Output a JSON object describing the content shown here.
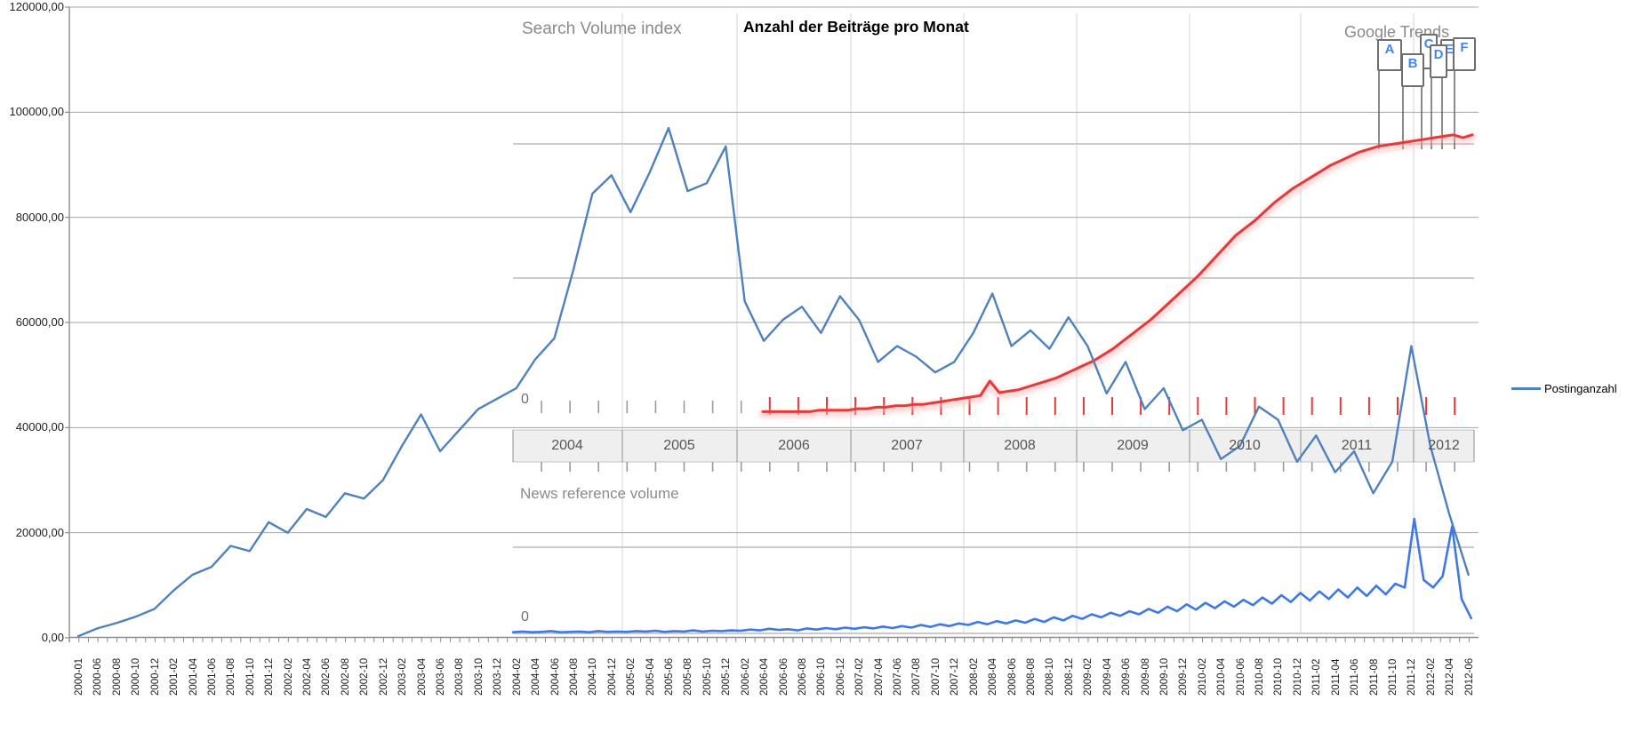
{
  "excel_chart": {
    "title": "Anzahl der Beiträge pro Monat",
    "legend_label": "Postinganzahl",
    "y_axis_labels": [
      "120000,00",
      "100000,00",
      "80000,00",
      "60000,00",
      "40000,00",
      "20000,00",
      "0,00"
    ]
  },
  "google_trends": {
    "search_section_title": "Search Volume index",
    "brand_label": "Google Trends",
    "news_section_title": "News reference volume",
    "search_axis_zero_label": "0",
    "news_axis_zero_label": "0",
    "year_labels": [
      "2004",
      "2005",
      "2006",
      "2007",
      "2008",
      "2009",
      "2010",
      "2011",
      "2012"
    ],
    "flag_labels": [
      "A",
      "B",
      "C",
      "D",
      "E",
      "F"
    ]
  },
  "chart_data": [
    {
      "type": "line",
      "name": "Postinganzahl",
      "title": "Anzahl der Beiträge pro Monat",
      "line_color": "#4F81BD",
      "ylim": [
        0,
        120000
      ],
      "ytick_step": 20000,
      "legend_position": "right",
      "grid": "horizontal",
      "x": [
        "2000-01",
        "2000-06",
        "2000-08",
        "2000-10",
        "2000-12",
        "2001-02",
        "2001-04",
        "2001-06",
        "2001-08",
        "2001-10",
        "2001-12",
        "2002-02",
        "2002-04",
        "2002-06",
        "2002-08",
        "2002-10",
        "2002-12",
        "2003-02",
        "2003-04",
        "2003-06",
        "2003-08",
        "2003-10",
        "2003-12",
        "2004-02",
        "2004-04",
        "2004-06",
        "2004-08",
        "2004-10",
        "2004-12",
        "2005-02",
        "2005-04",
        "2005-06",
        "2005-08",
        "2005-10",
        "2005-12",
        "2006-02",
        "2006-04",
        "2006-06",
        "2006-08",
        "2006-10",
        "2006-12",
        "2007-02",
        "2007-04",
        "2007-06",
        "2007-08",
        "2007-10",
        "2007-12",
        "2008-02",
        "2008-04",
        "2008-06",
        "2008-08",
        "2008-10",
        "2008-12",
        "2009-02",
        "2009-04",
        "2009-06",
        "2009-08",
        "2009-10",
        "2009-12",
        "2010-02",
        "2010-04",
        "2010-06",
        "2010-08",
        "2010-10",
        "2010-12",
        "2011-02",
        "2011-04",
        "2011-06",
        "2011-08",
        "2011-10",
        "2011-12",
        "2012-02",
        "2012-04",
        "2012-06"
      ],
      "values": [
        300,
        1800,
        2800,
        4000,
        5500,
        9000,
        12000,
        13500,
        17500,
        16500,
        22000,
        20000,
        24500,
        23000,
        27500,
        26500,
        30000,
        36500,
        42500,
        35500,
        39500,
        43500,
        45500,
        47500,
        53000,
        57000,
        70000,
        84500,
        88000,
        81000,
        88500,
        97000,
        85000,
        86500,
        93500,
        64000,
        56500,
        60500,
        63000,
        58000,
        65000,
        60500,
        52500,
        55500,
        53500,
        50500,
        52500,
        58000,
        65500,
        55500,
        58500,
        55000,
        61000,
        55500,
        46500,
        52500,
        43500,
        47500,
        39500,
        41500,
        34000,
        36500,
        44000,
        41500,
        33500,
        38500,
        31500,
        35500,
        27500,
        33500,
        55500,
        36500,
        23500,
        12000
      ]
    },
    {
      "type": "line",
      "name": "Search Volume index",
      "chart": "Google Trends search volume",
      "line_color": "#E8393A",
      "x_start": "2006-03",
      "x_interval": "monthly",
      "x_end": "2012-06",
      "ylim": [
        0,
        100
      ],
      "values": [
        0.5,
        0.5,
        0.5,
        0.5,
        0.5,
        0.5,
        1,
        1,
        1,
        1,
        1.5,
        1.5,
        2,
        2,
        2.5,
        2.5,
        3,
        3,
        3.5,
        4,
        4.5,
        5,
        5.5,
        6,
        11,
        7,
        7.5,
        8,
        9,
        10,
        11,
        12,
        13.5,
        15,
        16.5,
        18,
        20,
        22,
        24.5,
        27,
        29.5,
        32,
        35,
        38,
        41,
        44,
        47,
        50.5,
        54,
        57.5,
        61,
        63.5,
        66,
        69,
        72,
        74.5,
        77,
        79,
        81,
        83,
        85,
        86.5,
        88,
        89.5,
        90.5,
        91.5,
        92,
        92.5,
        93,
        93.5,
        94,
        94.5,
        95,
        95.5,
        94.5,
        95.5
      ]
    },
    {
      "type": "line",
      "name": "News reference volume",
      "chart": "Google Trends news volume",
      "line_color": "#3E78E7",
      "x_start": "2004-01",
      "x_interval": "monthly",
      "x_end": "2012-06",
      "values": [
        0.3,
        0.5,
        0.3,
        0.4,
        0.6,
        0.3,
        0.4,
        0.5,
        0.3,
        0.6,
        0.4,
        0.5,
        0.4,
        0.6,
        0.5,
        0.7,
        0.4,
        0.6,
        0.5,
        0.8,
        0.5,
        0.7,
        0.6,
        0.8,
        0.7,
        1.0,
        0.8,
        1.2,
        0.9,
        1.1,
        0.8,
        1.3,
        1.0,
        1.4,
        1.1,
        1.5,
        1.2,
        1.6,
        1.3,
        1.8,
        1.4,
        1.9,
        1.5,
        2.2,
        1.7,
        2.4,
        1.9,
        2.6,
        2.2,
        3.0,
        2.4,
        3.2,
        2.6,
        3.4,
        2.8,
        3.8,
        3.0,
        4.2,
        3.4,
        4.6,
        3.8,
        5.0,
        4.2,
        5.4,
        4.6,
        5.8,
        5.0,
        6.4,
        5.4,
        7.0,
        5.8,
        7.6,
        6.2,
        8.0,
        6.6,
        8.4,
        7.0,
        8.8,
        7.4,
        9.4,
        7.8,
        10.0,
        8.2,
        10.6,
        8.6,
        11,
        9,
        11.5,
        9.4,
        12,
        9.8,
        12.5,
        10.2,
        13,
        12,
        30,
        14,
        12,
        15,
        28,
        9,
        4
      ]
    }
  ],
  "colors": {
    "excel_line": "#4F81BD",
    "trends_red": "#E8393A",
    "trends_news_blue": "#3E78E7",
    "flag_letter": "#4285F4",
    "excel_grid": "#A6A6A6",
    "trends_grid": "#CBCBCB",
    "band_bg": "#EFEFEF"
  }
}
